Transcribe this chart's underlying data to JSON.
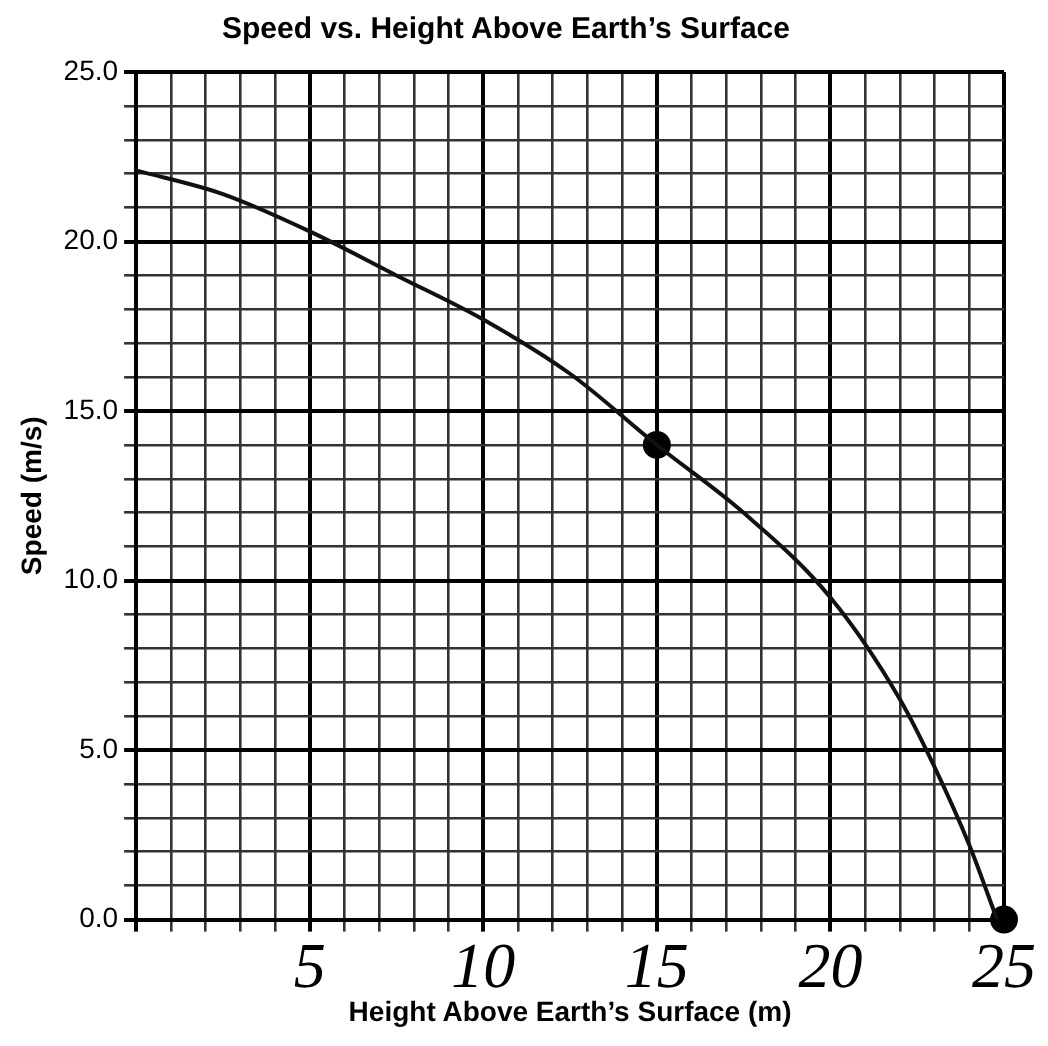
{
  "chart_data": {
    "type": "line",
    "title": "Speed vs. Height Above Earth’s Surface",
    "xlabel": "Height Above Earth’s Surface (m)",
    "ylabel": "Speed (m/s)",
    "x": [
      0,
      2.5,
      5,
      7.5,
      10,
      12.5,
      15,
      17.5,
      20,
      22,
      23,
      24,
      24.8
    ],
    "series": [
      {
        "color": "#111111",
        "marker": "none",
        "values": [
          22.1,
          21.4,
          20.3,
          19,
          17.7,
          16.1,
          14,
          12,
          9.5,
          6.5,
          4.5,
          2.2,
          0
        ]
      },
      {
        "type": "scatter",
        "color": "#000000",
        "marker": "circle",
        "x": [
          15,
          25
        ],
        "values": [
          14,
          0
        ]
      }
    ],
    "xlim": [
      0,
      25
    ],
    "ylim": [
      0,
      25
    ],
    "xticks": [
      {
        "value": 0,
        "label": null
      },
      {
        "value": 1,
        "label": null
      },
      {
        "value": 2,
        "label": null
      },
      {
        "value": 3,
        "label": null
      },
      {
        "value": 4,
        "label": null
      },
      5,
      {
        "value": 6,
        "label": null
      },
      {
        "value": 7,
        "label": null
      },
      {
        "value": 8,
        "label": null
      },
      {
        "value": 9,
        "label": null
      },
      10,
      {
        "value": 11,
        "label": null
      },
      {
        "value": 12,
        "label": null
      },
      {
        "value": 13,
        "label": null
      },
      {
        "value": 14,
        "label": null
      },
      15,
      {
        "value": 16,
        "label": null
      },
      {
        "value": 17,
        "label": null
      },
      {
        "value": 18,
        "label": null
      },
      {
        "value": 19,
        "label": null
      },
      20,
      {
        "value": 21,
        "label": null
      },
      {
        "value": 22,
        "label": null
      },
      {
        "value": 23,
        "label": null
      },
      {
        "value": 24,
        "label": null
      },
      25
    ],
    "yticks": [
      {
        "value": 0,
        "label": "0.0"
      },
      {
        "value": 1,
        "label": null
      },
      {
        "value": 2,
        "label": null
      },
      {
        "value": 3,
        "label": null
      },
      {
        "value": 4,
        "label": null
      },
      {
        "value": 5,
        "label": "5.0"
      },
      {
        "value": 6,
        "label": null
      },
      {
        "value": 7,
        "label": null
      },
      {
        "value": 8,
        "label": null
      },
      {
        "value": 9,
        "label": null
      },
      {
        "value": 10,
        "label": "10.0"
      },
      {
        "value": 11,
        "label": null
      },
      {
        "value": 12,
        "label": null
      },
      {
        "value": 13,
        "label": null
      },
      {
        "value": 14,
        "label": null
      },
      {
        "value": 15,
        "label": "15.0"
      },
      {
        "value": 16,
        "label": null
      },
      {
        "value": 17,
        "label": null
      },
      {
        "value": 18,
        "label": null
      },
      {
        "value": 19,
        "label": null
      },
      {
        "value": 20,
        "label": "20.0"
      },
      {
        "value": 21,
        "label": null
      },
      {
        "value": 22,
        "label": null
      },
      {
        "value": 23,
        "label": null
      },
      {
        "value": 24,
        "label": null
      },
      {
        "value": 25,
        "label": "25.0"
      }
    ],
    "grid": true,
    "legend": false
  }
}
